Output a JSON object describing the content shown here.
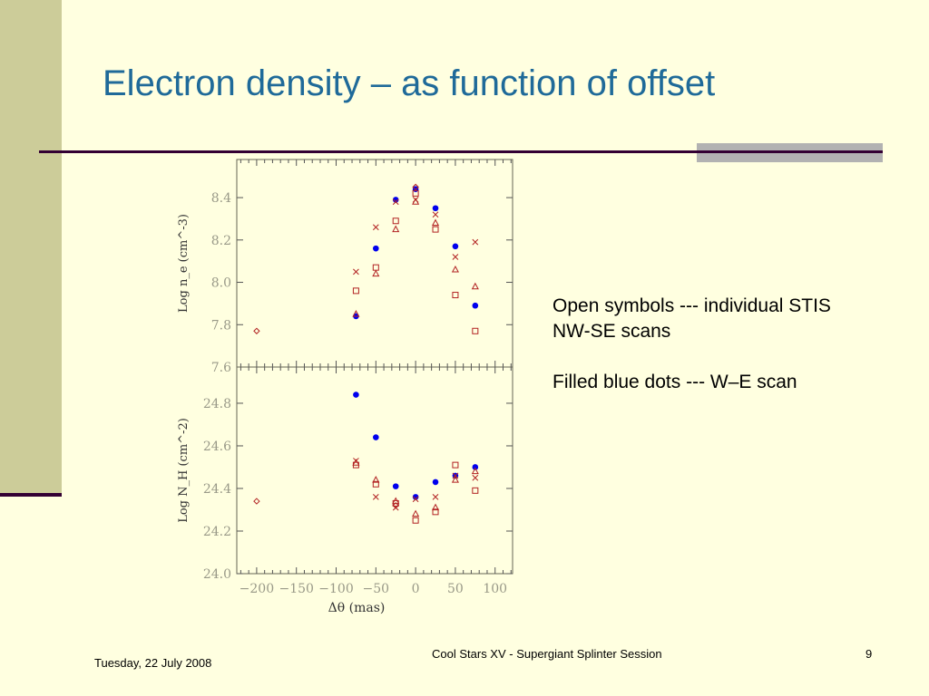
{
  "slide": {
    "title": "Electron density – as function of offset",
    "notes": [
      "Open symbols --- individual STIS",
      "NW-SE scans",
      "Filled blue dots --- W–E scan"
    ],
    "footer_date": "Tuesday, 22 July 2008",
    "footer_title": "Cool Stars XV - Supergiant Splinter Session",
    "page_number": "9"
  },
  "colors": {
    "title": "#1f6a99",
    "open_symbols": "#b22222",
    "filled_dots": "#0000ee",
    "axis_text": "#999988"
  },
  "chart_data": [
    {
      "type": "scatter",
      "title": "",
      "xlabel": "Δθ (mas)",
      "ylabel": "Log n_e (cm^-3)",
      "xlim": [
        -225,
        122
      ],
      "ylim": [
        7.6,
        8.58
      ],
      "yticks": [
        "7.6",
        "7.8",
        "8.0",
        "8.2",
        "8.4"
      ],
      "grid": false,
      "series": [
        {
          "name": "W–E scan (filled)",
          "marker": "dot",
          "x": [
            -75,
            -50,
            -25,
            0,
            25,
            50,
            75
          ],
          "y": [
            7.84,
            8.16,
            8.39,
            8.44,
            8.35,
            8.17,
            7.89
          ]
        },
        {
          "name": "STIS NW-SE (cross)",
          "marker": "x",
          "x": [
            -75,
            -50,
            -25,
            0,
            25,
            50,
            75
          ],
          "y": [
            8.05,
            8.26,
            8.38,
            8.39,
            8.32,
            8.12,
            8.19
          ]
        },
        {
          "name": "STIS NW-SE (square)",
          "marker": "square",
          "x": [
            -75,
            -50,
            -25,
            0,
            25,
            50,
            75
          ],
          "y": [
            7.96,
            8.07,
            8.29,
            8.42,
            8.25,
            7.94,
            7.77
          ]
        },
        {
          "name": "STIS NW-SE (triangle)",
          "marker": "triangle",
          "x": [
            -75,
            -50,
            -25,
            0,
            25,
            50,
            75
          ],
          "y": [
            7.85,
            8.04,
            8.25,
            8.38,
            8.28,
            8.06,
            7.98
          ]
        },
        {
          "name": "STIS NW-SE (diamond)",
          "marker": "diamond",
          "x": [
            -200,
            0
          ],
          "y": [
            7.77,
            8.45
          ]
        }
      ]
    },
    {
      "type": "scatter",
      "title": "",
      "xlabel": "Δθ (mas)",
      "ylabel": "Log N_H (cm^-2)",
      "xlim": [
        -225,
        122
      ],
      "ylim": [
        24.0,
        24.97
      ],
      "xticks": [
        "−200",
        "−150",
        "−100",
        "−50",
        "0",
        "50",
        "100"
      ],
      "yticks": [
        "24.0",
        "24.2",
        "24.4",
        "24.6",
        "24.8"
      ],
      "grid": false,
      "series": [
        {
          "name": "W–E scan (filled)",
          "marker": "dot",
          "x": [
            -75,
            -50,
            -25,
            0,
            25,
            50,
            75
          ],
          "y": [
            24.84,
            24.64,
            24.41,
            24.36,
            24.43,
            24.46,
            24.5
          ]
        },
        {
          "name": "STIS NW-SE (cross)",
          "marker": "x",
          "x": [
            -75,
            -50,
            -25,
            0,
            25,
            50,
            75
          ],
          "y": [
            24.53,
            24.36,
            24.31,
            24.35,
            24.36,
            24.46,
            24.45
          ]
        },
        {
          "name": "STIS NW-SE (square)",
          "marker": "square",
          "x": [
            -75,
            -50,
            -25,
            0,
            25,
            50,
            75
          ],
          "y": [
            24.51,
            24.42,
            24.33,
            24.25,
            24.29,
            24.51,
            24.39
          ]
        },
        {
          "name": "STIS NW-SE (triangle)",
          "marker": "triangle",
          "x": [
            -75,
            -50,
            -25,
            0,
            25,
            50,
            75
          ],
          "y": [
            24.52,
            24.44,
            24.34,
            24.28,
            24.31,
            24.44,
            24.48
          ]
        },
        {
          "name": "STIS NW-SE (diamond)",
          "marker": "diamond",
          "x": [
            -200,
            -25
          ],
          "y": [
            24.34,
            24.32
          ]
        }
      ]
    }
  ]
}
